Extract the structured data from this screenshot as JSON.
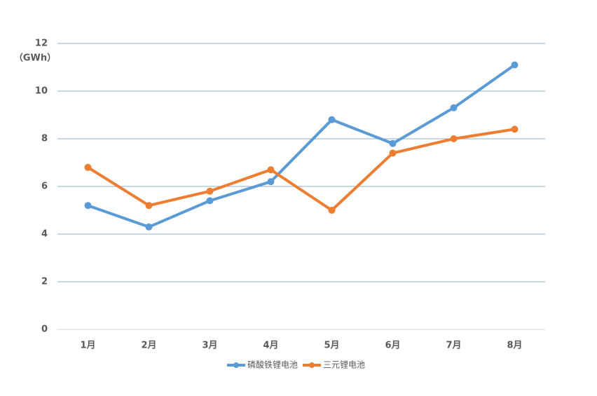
{
  "chart_data": {
    "type": "line",
    "y_label": "（GWh）",
    "categories": [
      "1月",
      "2月",
      "3月",
      "4月",
      "5月",
      "6月",
      "7月",
      "8月"
    ],
    "series": [
      {
        "name": "磷酸铁锂电池",
        "color": "#5b9bd5",
        "values": [
          5.2,
          4.3,
          5.4,
          6.2,
          8.8,
          7.8,
          9.3,
          11.1
        ]
      },
      {
        "name": "三元锂电池",
        "color": "#ed7d31",
        "values": [
          6.8,
          5.2,
          5.8,
          6.7,
          5.0,
          7.4,
          8.0,
          8.4
        ]
      }
    ],
    "ylim": [
      0,
      12
    ],
    "yticks": [
      0,
      2,
      4,
      6,
      8,
      10,
      12
    ],
    "grid": true,
    "legend": "bottom"
  }
}
